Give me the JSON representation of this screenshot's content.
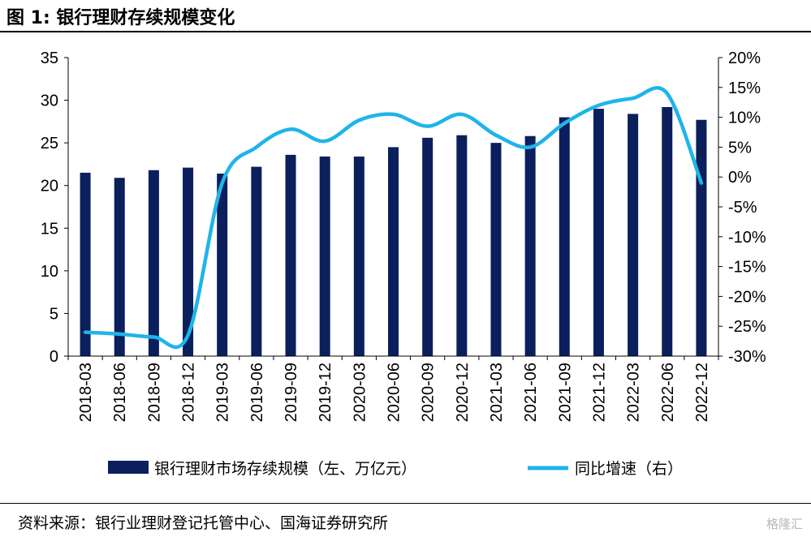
{
  "figure": {
    "title": "图 1:  银行理财存续规模变化",
    "source": "资料来源：银行业理财登记托管中心、国海证券研究所",
    "watermark": "格隆汇"
  },
  "colors": {
    "bar": "#0b1f5c",
    "line": "#1fb4ea",
    "axis": "#000000"
  },
  "chart_data": {
    "type": "bar+line",
    "title": "",
    "categories": [
      "2018-03",
      "2018-06",
      "2018-09",
      "2018-12",
      "2019-03",
      "2019-06",
      "2019-09",
      "2019-12",
      "2020-03",
      "2020-06",
      "2020-09",
      "2020-12",
      "2021-03",
      "2021-06",
      "2021-09",
      "2021-12",
      "2022-03",
      "2022-06",
      "2022-12"
    ],
    "series": [
      {
        "name": "银行理财市场存续规模（左、万亿元）",
        "type": "bar",
        "axis": "left",
        "values": [
          21.5,
          20.9,
          21.8,
          22.1,
          21.4,
          22.2,
          23.6,
          23.4,
          23.4,
          24.5,
          25.6,
          25.9,
          25.0,
          25.8,
          28.0,
          29.0,
          28.4,
          29.2,
          27.7
        ]
      },
      {
        "name": "同比增速（右）",
        "type": "line",
        "axis": "right",
        "values": [
          -26.0,
          -26.3,
          -26.8,
          -26.5,
          -1.0,
          5.0,
          8.0,
          6.0,
          9.5,
          10.5,
          8.5,
          10.5,
          7.0,
          5.0,
          9.0,
          12.0,
          13.2,
          14.0,
          -1.0
        ]
      }
    ],
    "yleft": {
      "min": 0,
      "max": 35,
      "step": 5,
      "ticks": [
        "0",
        "5",
        "10",
        "15",
        "20",
        "25",
        "30",
        "35"
      ]
    },
    "yright": {
      "min": -30,
      "max": 20,
      "step": 5,
      "ticks": [
        "-30%",
        "-25%",
        "-20%",
        "-15%",
        "-10%",
        "-5%",
        "0%",
        "5%",
        "10%",
        "15%",
        "20%"
      ]
    },
    "legend": {
      "position": "bottom"
    },
    "grid": false
  }
}
